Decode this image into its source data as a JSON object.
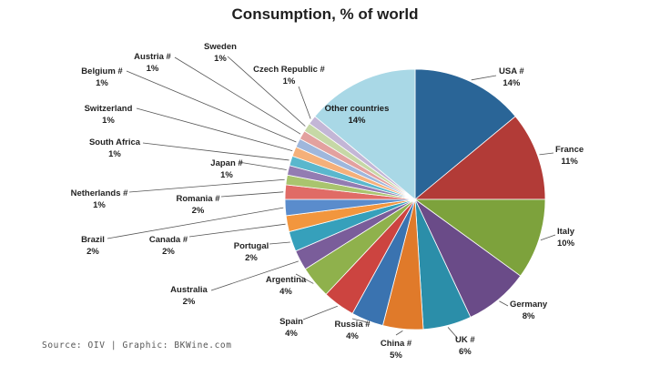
{
  "chart_data": {
    "type": "pie",
    "title": "Consumption, % of world",
    "slices": [
      {
        "name": "USA #",
        "pct_label": "14%",
        "value": 14,
        "color": "#2a6597"
      },
      {
        "name": "France",
        "pct_label": "11%",
        "value": 11,
        "color": "#b23b37"
      },
      {
        "name": "Italy",
        "pct_label": "10%",
        "value": 10,
        "color": "#7da23c"
      },
      {
        "name": "Germany",
        "pct_label": "8%",
        "value": 8,
        "color": "#6a4b88"
      },
      {
        "name": "UK #",
        "pct_label": "6%",
        "value": 6,
        "color": "#2b8ea9"
      },
      {
        "name": "China #",
        "pct_label": "5%",
        "value": 5,
        "color": "#e07a2a"
      },
      {
        "name": "Russia #",
        "pct_label": "4%",
        "value": 4,
        "color": "#3a73b0"
      },
      {
        "name": "Spain",
        "pct_label": "4%",
        "value": 4,
        "color": "#cc4440"
      },
      {
        "name": "Argentina",
        "pct_label": "4%",
        "value": 4,
        "color": "#8fb14c"
      },
      {
        "name": "Australia",
        "pct_label": "2%",
        "value": 2.5,
        "color": "#7a5d9a"
      },
      {
        "name": "Portugal",
        "pct_label": "2%",
        "value": 2.5,
        "color": "#36a0bb"
      },
      {
        "name": "Canada #",
        "pct_label": "2%",
        "value": 2,
        "color": "#f2963e"
      },
      {
        "name": "Brazil",
        "pct_label": "2%",
        "value": 2,
        "color": "#5a8ccc"
      },
      {
        "name": "Romania #",
        "pct_label": "2%",
        "value": 1.8,
        "color": "#e06b66"
      },
      {
        "name": "Netherlands #",
        "pct_label": "1%",
        "value": 1.2,
        "color": "#a9c46e"
      },
      {
        "name": "Japan #",
        "pct_label": "1%",
        "value": 1.2,
        "color": "#937cb2"
      },
      {
        "name": "South Africa",
        "pct_label": "1%",
        "value": 1.2,
        "color": "#5ab7cd"
      },
      {
        "name": "Switzerland",
        "pct_label": "1%",
        "value": 1.2,
        "color": "#f5b07a"
      },
      {
        "name": "Belgium #",
        "pct_label": "1%",
        "value": 1.1,
        "color": "#9fb7dc"
      },
      {
        "name": "Austria #",
        "pct_label": "1%",
        "value": 1.1,
        "color": "#e3a19f"
      },
      {
        "name": "Sweden",
        "pct_label": "1%",
        "value": 1.1,
        "color": "#c6d8a6"
      },
      {
        "name": "Czech Republic #",
        "pct_label": "1%",
        "value": 1.1,
        "color": "#c3b6d6"
      },
      {
        "name": "Other countries",
        "pct_label": "14%",
        "value": 14,
        "color": "#a9d8e6"
      }
    ]
  },
  "source_text": "Source: OIV | Graphic: BKWine.com"
}
